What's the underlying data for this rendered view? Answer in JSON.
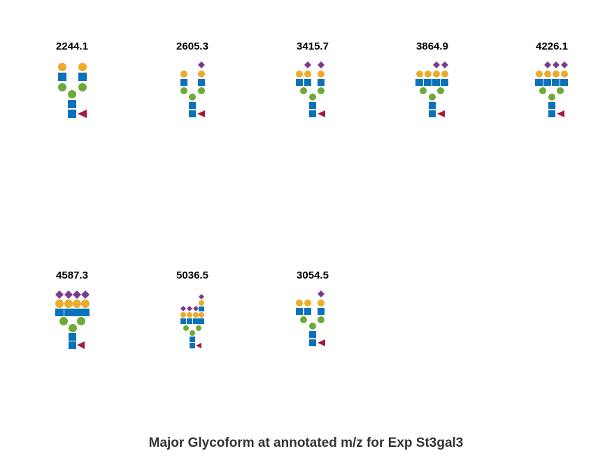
{
  "figure": {
    "title": "Major Glycoform at annotated m/z for Exp St3gal3"
  },
  "colors": {
    "galactose": "#EBAB2B",
    "glcnac": "#0A72BA",
    "mannose": "#6DAA38",
    "fucose": "#A6193E",
    "neuac": "#7B3A8E"
  },
  "glycans": [
    {
      "mz": "2244.1",
      "structure": "biantennary: Gal-GlcNAc x2, Man x3, GlcNAc x2, core Fuc"
    },
    {
      "mz": "2605.3",
      "structure": "biantennary: NeuAc-Gal-GlcNAc, Gal-GlcNAc, Man x3, GlcNAc x2, core Fuc"
    },
    {
      "mz": "3415.7",
      "structure": "triantennary: NeuAc x2, Gal x3, GlcNAc x3, Man x3, GlcNAc x2, core Fuc"
    },
    {
      "mz": "3864.9",
      "structure": "tetraantennary: NeuAc x2, Gal x4, GlcNAc x4, Man x3, GlcNAc x2, core Fuc"
    },
    {
      "mz": "4226.1",
      "structure": "tetraantennary: NeuAc x3, Gal x4, GlcNAc x4, Man x3, GlcNAc x2, core Fuc"
    },
    {
      "mz": "4587.3",
      "structure": "tetraantennary: NeuAc x4, Gal x4, GlcNAc x4, Man x3, GlcNAc x2, core Fuc"
    },
    {
      "mz": "5036.5",
      "structure": "tetraantennary with LacNAc extension: NeuAc x4, Gal x5, GlcNAc x5, Man x3, GlcNAc x2, core Fuc"
    },
    {
      "mz": "3054.5",
      "structure": "triantennary: NeuAc x1, Gal x3, GlcNAc x3, Man x3, GlcNAc x2, core Fuc"
    }
  ]
}
